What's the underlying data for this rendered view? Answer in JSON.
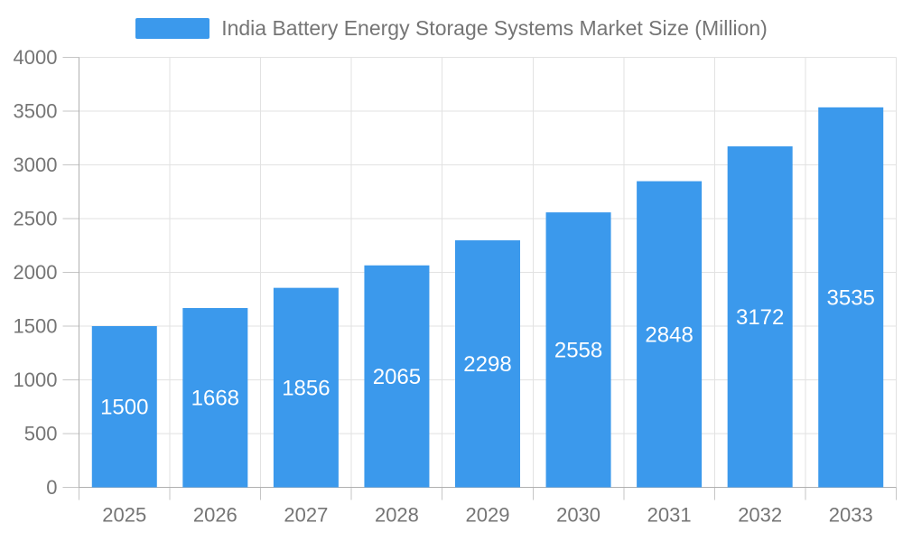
{
  "legend": {
    "position": "top",
    "item_label": "India Battery Energy Storage Systems Market Size (Million)"
  },
  "chart_data": {
    "type": "bar",
    "title": "India Battery Energy Storage Systems Market Size (Million)",
    "series": [
      {
        "name": "India Battery Energy Storage Systems Market Size (Million)",
        "values": [
          1500,
          1668,
          1856,
          2065,
          2298,
          2558,
          2848,
          3172,
          3535
        ]
      }
    ],
    "categories": [
      "2025",
      "2026",
      "2027",
      "2028",
      "2029",
      "2030",
      "2031",
      "2032",
      "2033"
    ],
    "bar_labels": [
      "1500",
      "1668",
      "1856",
      "2065",
      "2298",
      "2558",
      "2848",
      "3172",
      "3535"
    ],
    "bar_label_position": "inside-center",
    "xlabel": "",
    "ylabel": "",
    "ylim": [
      0,
      4000
    ],
    "yticks": [
      0,
      500,
      1000,
      1500,
      2000,
      2500,
      3000,
      3500,
      4000
    ],
    "grid": true,
    "legend_position": "top",
    "colors": {
      "bar": "#3b99ec",
      "bar_label_text": "#ffffff",
      "axis_text": "#757575",
      "grid_line": "#e2e2e2",
      "axis_line": "#b0b0b0",
      "tick_line": "#c6c6c6",
      "background": "#ffffff"
    }
  }
}
